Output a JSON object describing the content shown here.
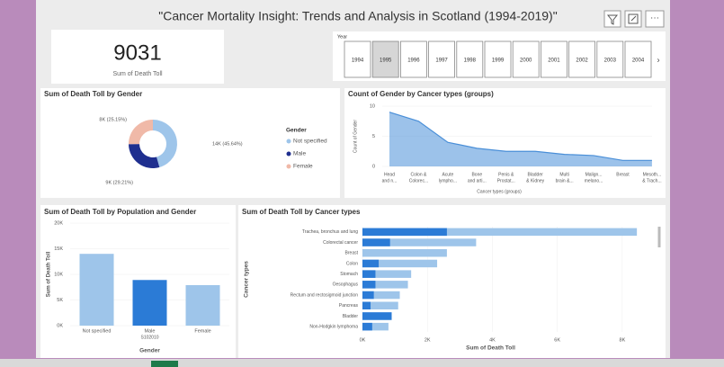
{
  "header": {
    "title": "\"Cancer Mortality Insight: Trends and Analysis in Scotland (1994-2019)\""
  },
  "card": {
    "value": "9031",
    "label": "Sum of Death Toll"
  },
  "slicer": {
    "label": "Year",
    "items": [
      "1994",
      "1995",
      "1996",
      "1997",
      "1998",
      "1999",
      "2000",
      "2001",
      "2002",
      "2003",
      "2004"
    ],
    "selected": 1
  },
  "chart_data": [
    {
      "type": "pie",
      "title": "Sum of Death Toll by Gender",
      "legend_title": "Gender",
      "categories": [
        "Not specified",
        "Male",
        "Female"
      ],
      "values": [
        45.64,
        29.21,
        25.15
      ],
      "value_labels": [
        "14K (45.64%)",
        "9K (29.21%)",
        "8K (25.15%)"
      ],
      "colors": [
        "#9ec5ea",
        "#1f2f8f",
        "#f0b9a8"
      ]
    },
    {
      "type": "area",
      "title": "Count of Gender by Cancer types (groups)",
      "xlabel": "Cancer types (groups)",
      "ylabel": "Count of Gender",
      "categories": [
        [
          "Head",
          "and n..."
        ],
        [
          "Colon &",
          "Colorec..."
        ],
        [
          "Acute",
          "lympho..."
        ],
        [
          "Bone",
          "and arti..."
        ],
        [
          "Penis &",
          "Prostat..."
        ],
        [
          "Bladder",
          "& Kidney"
        ],
        [
          "Multi",
          "brain &..."
        ],
        [
          "Malign...",
          "melano..."
        ],
        [
          "Breast"
        ],
        [
          "Mesoth...",
          "& Trach..."
        ]
      ],
      "values": [
        9,
        7.5,
        4,
        3,
        2.5,
        2.5,
        2,
        1.8,
        1,
        1
      ],
      "color": "#4a8fd8",
      "ylim": [
        0,
        10
      ],
      "yticks": [
        0,
        5,
        10
      ]
    },
    {
      "type": "bar",
      "title": "Sum of Death Toll by Population and Gender",
      "xlabel": "Gender",
      "ylabel": "Sum of Death Toll",
      "annotation": "S102010",
      "categories": [
        "Not specified",
        "Male",
        "Female"
      ],
      "values": [
        14000,
        8900,
        7900
      ],
      "colors": [
        "#9ec5ea",
        "#2b7bd6",
        "#9ec5ea"
      ],
      "ylim": [
        0,
        20000
      ],
      "yticks": [
        {
          "value": 0,
          "label": "0K"
        },
        {
          "value": 5000,
          "label": "5K"
        },
        {
          "value": 10000,
          "label": "10K"
        },
        {
          "value": 15000,
          "label": "15K"
        },
        {
          "value": 20000,
          "label": "20K"
        }
      ]
    },
    {
      "type": "hbar",
      "title": "Sum of Death Toll by Cancer types",
      "xlabel": "Sum of Death Toll",
      "ylabel": "Cancer types",
      "categories": [
        "Trachea, bronchus and lung",
        "Colorectal cancer",
        "Breast",
        "Colon",
        "Stomach",
        "Oesophagus",
        "Rectum and rectosigmoid junction",
        "Pancreas",
        "Bladder",
        "Non-Hodgkin lymphoma"
      ],
      "series": [
        {
          "color": "#9ec5ea",
          "values": [
            8450,
            3500,
            2600,
            2300,
            1500,
            1400,
            1150,
            1100,
            900,
            800
          ]
        },
        {
          "color": "#2b7bd6",
          "values": [
            2600,
            850,
            0,
            500,
            400,
            400,
            350,
            250,
            900,
            300
          ]
        }
      ],
      "xlim": [
        0,
        9000
      ],
      "xticks": [
        {
          "value": 0,
          "label": "0K"
        },
        {
          "value": 2000,
          "label": "2K"
        },
        {
          "value": 4000,
          "label": "4K"
        },
        {
          "value": 6000,
          "label": "6K"
        },
        {
          "value": 8000,
          "label": "8K"
        }
      ]
    }
  ]
}
